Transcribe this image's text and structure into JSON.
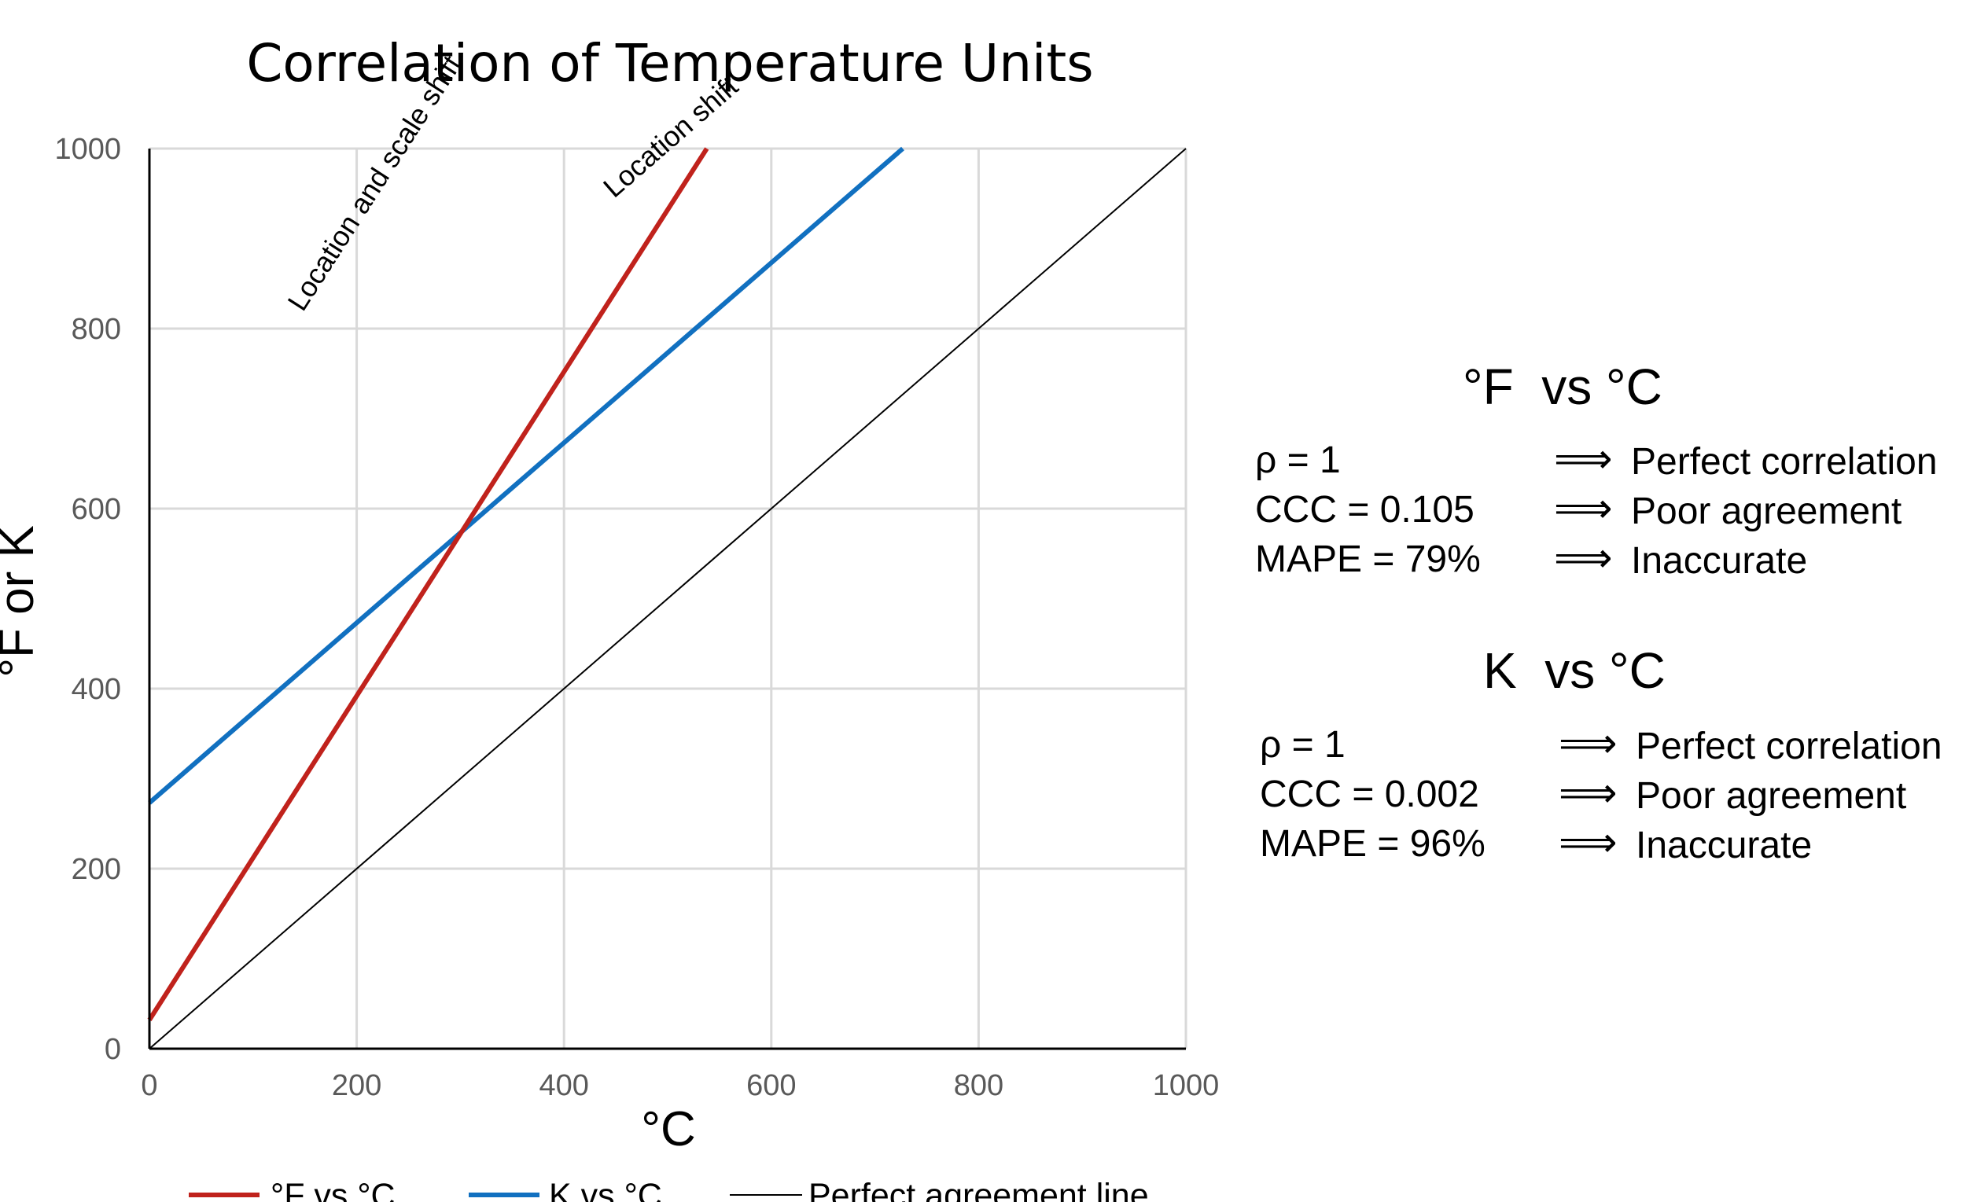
{
  "chart_data": {
    "type": "line",
    "title": "Correlation of Temperature Units",
    "xlabel": "°C",
    "ylabel": "°F or K",
    "xlim": [
      0,
      1000
    ],
    "ylim": [
      0,
      1000
    ],
    "xticks": [
      0,
      200,
      400,
      600,
      800,
      1000
    ],
    "yticks": [
      0,
      200,
      400,
      600,
      800,
      1000
    ],
    "grid": true,
    "legend_position": "bottom",
    "series": [
      {
        "name": "°F vs °C",
        "color": "#C0221C",
        "x": [
          0,
          537.78
        ],
        "y": [
          32,
          1000
        ]
      },
      {
        "name": "K vs °C",
        "color": "#1170C0",
        "x": [
          0,
          726.85
        ],
        "y": [
          273.15,
          1000
        ]
      },
      {
        "name": "Perfect agreement line",
        "color": "#000000",
        "x": [
          0,
          1000
        ],
        "y": [
          0,
          1000
        ]
      }
    ],
    "annotations": [
      {
        "text": "Location and scale shift",
        "series": "°F vs °C"
      },
      {
        "text": "Location shift",
        "series": "K vs °C"
      }
    ]
  },
  "stats_panels": [
    {
      "heading": "°F  vs °C",
      "rows": [
        {
          "metric": "ρ = 1",
          "arrow": "⟹",
          "result": "Perfect correlation"
        },
        {
          "metric": "CCC = 0.105",
          "arrow": "⟹",
          "result": "Poor agreement"
        },
        {
          "metric": "MAPE = 79%",
          "arrow": "⟹",
          "result": "Inaccurate"
        }
      ]
    },
    {
      "heading": "K  vs °C",
      "rows": [
        {
          "metric": "ρ = 1",
          "arrow": "⟹",
          "result": "Perfect correlation"
        },
        {
          "metric": "CCC = 0.002",
          "arrow": "⟹",
          "result": "Poor agreement"
        },
        {
          "metric": "MAPE = 96%",
          "arrow": "⟹",
          "result": "Inaccurate"
        }
      ]
    }
  ]
}
